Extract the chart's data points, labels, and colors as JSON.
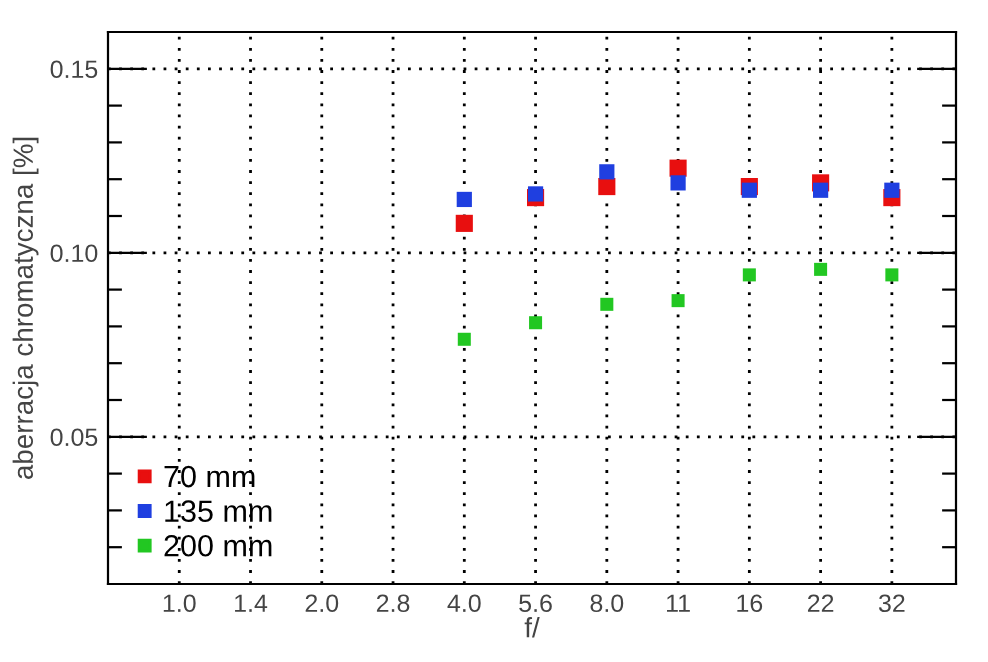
{
  "chart_data": {
    "type": "scatter",
    "xlabel": "f/",
    "ylabel": "aberracja chromatyczna [%]",
    "categories": [
      "1.0",
      "1.4",
      "2.0",
      "2.8",
      "4.0",
      "5.6",
      "8.0",
      "11",
      "16",
      "22",
      "32"
    ],
    "series": [
      {
        "name": "70 mm",
        "color": "#e80f0f",
        "values": [
          null,
          null,
          null,
          null,
          0.108,
          0.115,
          0.118,
          0.123,
          0.118,
          0.119,
          0.115
        ]
      },
      {
        "name": "135 mm",
        "color": "#1f3fe0",
        "values": [
          null,
          null,
          null,
          null,
          0.1145,
          0.116,
          0.122,
          0.119,
          0.117,
          0.117,
          0.117
        ]
      },
      {
        "name": "200 mm",
        "color": "#22c722",
        "values": [
          null,
          null,
          null,
          null,
          0.0765,
          0.081,
          0.086,
          0.087,
          0.094,
          0.0955,
          0.094
        ]
      }
    ],
    "ylim": [
      0.01,
      0.16
    ],
    "yticks": [
      {
        "value": 0.02,
        "label": null
      },
      {
        "value": 0.03,
        "label": null
      },
      {
        "value": 0.04,
        "label": null
      },
      {
        "value": 0.05,
        "label": "0.05"
      },
      {
        "value": 0.06,
        "label": null
      },
      {
        "value": 0.07,
        "label": null
      },
      {
        "value": 0.08,
        "label": null
      },
      {
        "value": 0.09,
        "label": null
      },
      {
        "value": 0.1,
        "label": "0.10"
      },
      {
        "value": 0.11,
        "label": null
      },
      {
        "value": 0.12,
        "label": null
      },
      {
        "value": 0.13,
        "label": null
      },
      {
        "value": 0.14,
        "label": null
      },
      {
        "value": 0.15,
        "label": "0.15"
      }
    ],
    "grid": true,
    "legend": "bottom left",
    "marker": "square"
  }
}
